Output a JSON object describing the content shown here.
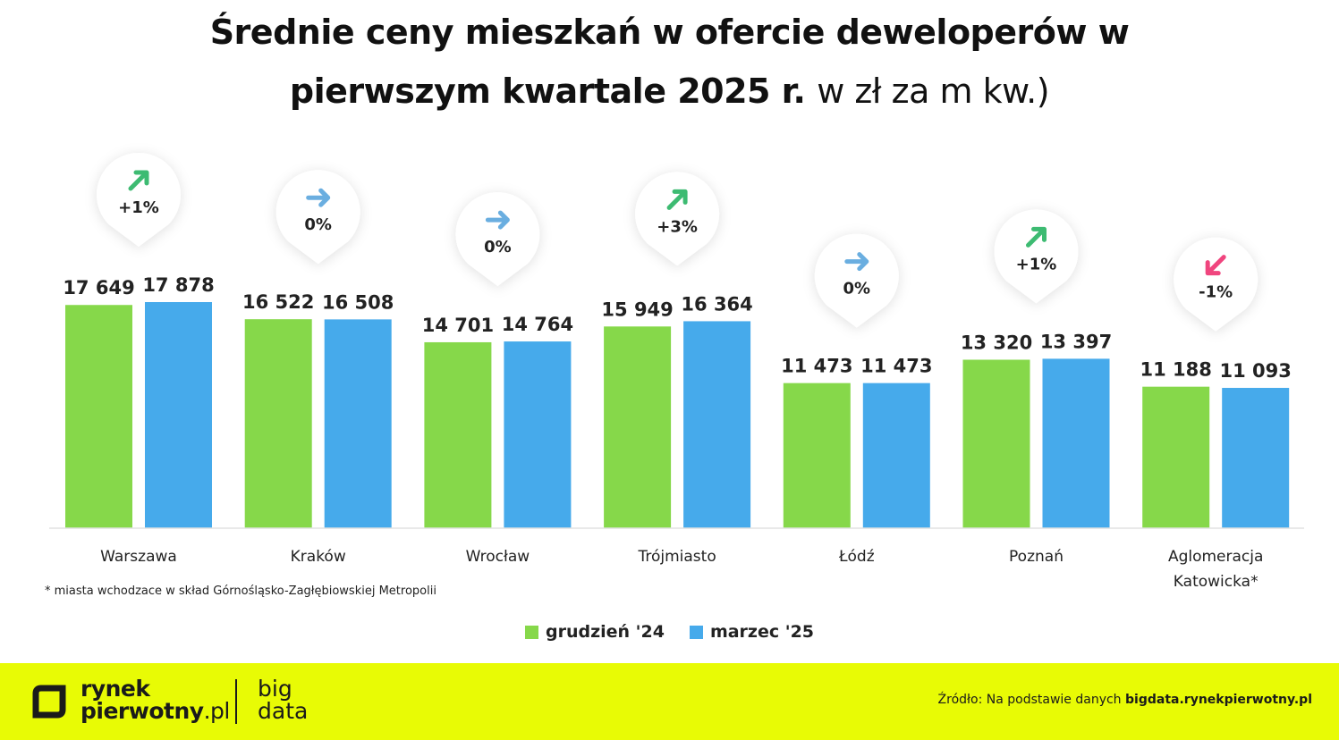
{
  "title": {
    "line1": "Średnie ceny mieszkań w ofercie deweloperów w",
    "line2_bold": "pierwszym kwartale 2025 r.",
    "line2_light": "w zł za m kw.)"
  },
  "footnote": "* miasta wchodzace w skład Górnośląsko-Zagłębiowskiej Metropolii",
  "legend": [
    {
      "label": "grudzień '24",
      "color": "#86d84a"
    },
    {
      "label": "marzec '25",
      "color": "#46aaeb"
    }
  ],
  "chart_data": {
    "type": "bar",
    "categories": [
      "Warszawa",
      "Kraków",
      "Wrocław",
      "Trójmiasto",
      "Łódź",
      "Poznań",
      "Aglomeracja Katowicka*"
    ],
    "series": [
      {
        "name": "grudzień '24",
        "color": "#86d84a",
        "values": [
          17649,
          16522,
          14701,
          15949,
          11473,
          13320,
          11188
        ],
        "labels": [
          "17 649",
          "16 522",
          "14 701",
          "15 949",
          "11 473",
          "13 320",
          "11 188"
        ]
      },
      {
        "name": "marzec '25",
        "color": "#46aaeb",
        "values": [
          17878,
          16508,
          14764,
          16364,
          11473,
          13397,
          11093
        ],
        "labels": [
          "17 878",
          "16 508",
          "14 764",
          "16 364",
          "11 473",
          "13 397",
          "11 093"
        ]
      }
    ],
    "changes": [
      {
        "label": "+1%",
        "direction": "up",
        "color": "#3dbb72"
      },
      {
        "label": "0%",
        "direction": "right",
        "color": "#6aaee0"
      },
      {
        "label": "0%",
        "direction": "right",
        "color": "#6aaee0"
      },
      {
        "label": "+3%",
        "direction": "up",
        "color": "#3dbb72"
      },
      {
        "label": "0%",
        "direction": "right",
        "color": "#6aaee0"
      },
      {
        "label": "+1%",
        "direction": "up",
        "color": "#3dbb72"
      },
      {
        "label": "-1%",
        "direction": "down",
        "color": "#f0457e"
      }
    ]
  },
  "footer": {
    "brand_line1": "rynek",
    "brand_line2": "pierwotny",
    "brand_tld": ".pl",
    "sub_line1": "big",
    "sub_line2": "data",
    "source_prefix": "Źródło: Na podstawie danych",
    "source_link": "bigdata.rynekpierwotny.pl",
    "background": "#e8fb05"
  }
}
